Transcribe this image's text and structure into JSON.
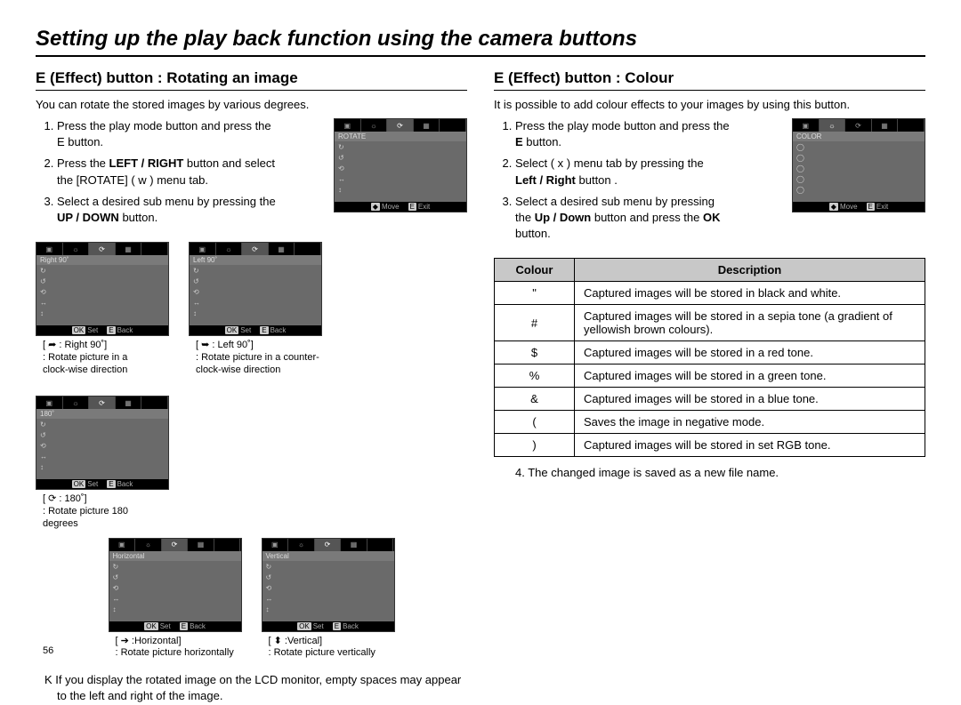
{
  "page_title": "Setting up the play back function using the camera buttons",
  "page_number": "56",
  "left": {
    "section_title": "E (Effect) button : Rotating an image",
    "intro": "You can rotate the stored images by various degrees.",
    "steps": {
      "s1a": "Press the play mode button and press the",
      "s1b": "E button.",
      "s2a": "Press the ",
      "s2b": "LEFT / RIGHT",
      "s2c": " button and select",
      "s2d": "the [ROTATE] ( w ) menu tab.",
      "s3a": "Select a desired sub menu by pressing the",
      "s3b": "UP / DOWN",
      "s3c": " button."
    },
    "main_lcd": {
      "label": "ROTATE",
      "foot_left": "Move",
      "foot_right": "Exit",
      "key_left": "◆",
      "key_right": "E"
    },
    "thumbs": [
      {
        "lcd_label": "Right 90˚",
        "foot_l": "Set",
        "foot_r": "Back",
        "key_l": "OK",
        "key_r": "E",
        "cap1": "[ ➦  : Right 90˚]",
        "cap2": ": Rotate picture in a",
        "cap3": "  clock-wise direction"
      },
      {
        "lcd_label": "Left 90˚",
        "foot_l": "Set",
        "foot_r": "Back",
        "key_l": "OK",
        "key_r": "E",
        "cap1": "[ ➥  : Left 90˚]",
        "cap2": ": Rotate picture in a counter-",
        "cap3": "  clock-wise direction"
      },
      {
        "lcd_label": "180˚",
        "foot_l": "Set",
        "foot_r": "Back",
        "key_l": "OK",
        "key_r": "E",
        "cap1": "[ ⟳  : 180˚]",
        "cap2": ": Rotate picture 180",
        "cap3": "  degrees"
      },
      {
        "lcd_label": "Horizontal",
        "foot_l": "Set",
        "foot_r": "Back",
        "key_l": "OK",
        "key_r": "E",
        "cap1": "[ ➔  :Horizontal]",
        "cap2": ": Rotate picture horizontally",
        "cap3": ""
      },
      {
        "lcd_label": "Vertical",
        "foot_l": "Set",
        "foot_r": "Back",
        "key_l": "OK",
        "key_r": "E",
        "cap1": "[ ⬍  :Vertical]",
        "cap2": ": Rotate picture vertically",
        "cap3": ""
      }
    ],
    "note": "K If you display the rotated image on the LCD monitor, empty spaces may appear to the left and right of the image."
  },
  "right": {
    "section_title": "E (Effect) button : Colour",
    "intro": "It is possible to add colour effects to your images by using this button.",
    "steps": {
      "s1a": "Press the play mode button and press the",
      "s1b": "E",
      "s1c": " button.",
      "s2a": "Select ( x ) menu tab by pressing the",
      "s2b": "Left / Right",
      "s2c": " button .",
      "s3a": "Select a desired sub menu by pressing",
      "s3b": "the ",
      "s3c": "Up / Down",
      "s3d": " button and press the ",
      "s3e": "OK",
      "s3f": "button."
    },
    "main_lcd": {
      "label": "COLOR",
      "foot_left": "Move",
      "foot_right": "Exit",
      "key_left": "◆",
      "key_right": "E"
    },
    "table": {
      "h1": "Colour",
      "h2": "Description",
      "rows": [
        {
          "sym": "\"",
          "desc": "Captured images will be stored in   black and white."
        },
        {
          "sym": "#",
          "desc": "Captured images will be stored in a sepia tone (a gradient of yellowish brown colours)."
        },
        {
          "sym": "$",
          "desc": "Captured images will be stored in a red tone."
        },
        {
          "sym": "%",
          "desc": "Captured images will be stored in a green tone."
        },
        {
          "sym": "&",
          "desc": "Captured images will be stored in a blue tone."
        },
        {
          "sym": "(",
          "desc": "Saves the image in negative mode."
        },
        {
          "sym": ")",
          "desc": "Captured images will be stored in set RGB tone."
        }
      ]
    },
    "after": "4. The changed image is saved as a new file name."
  }
}
